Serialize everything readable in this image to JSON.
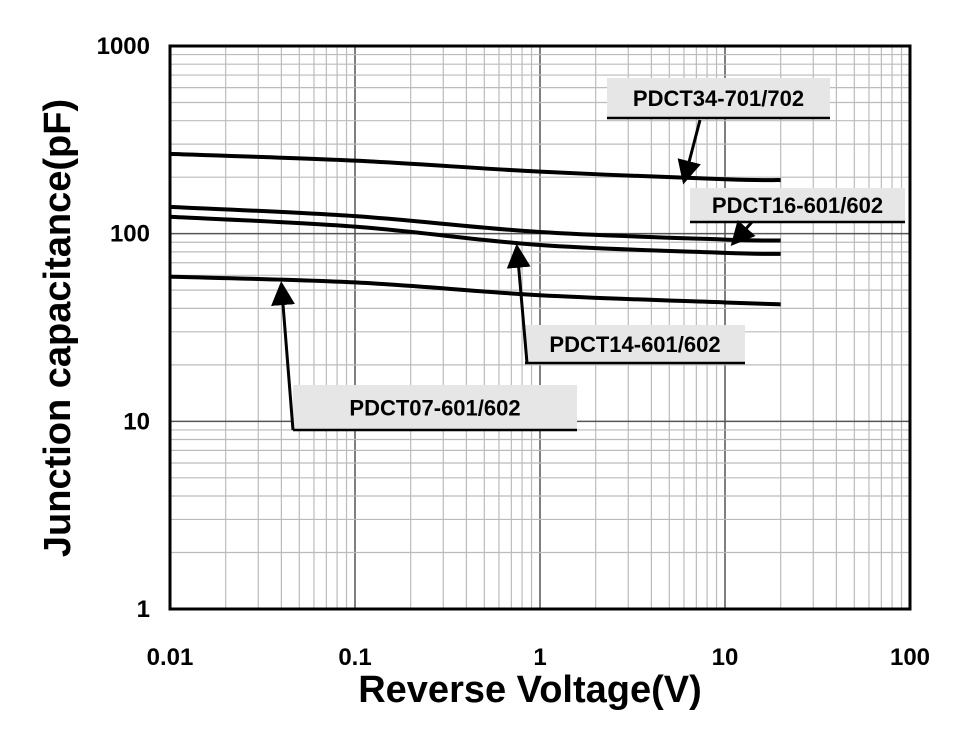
{
  "chart_data": {
    "type": "line",
    "title": "",
    "xlabel": "Reverse Voltage(V)",
    "ylabel": "Junction capacitance(pF)",
    "xscale": "log",
    "yscale": "log",
    "xlim": [
      0.01,
      100
    ],
    "ylim": [
      1,
      1000
    ],
    "grid": true,
    "x_ticks": [
      "0.01",
      "0.1",
      "1",
      "10",
      "100"
    ],
    "y_ticks": [
      "1",
      "10",
      "100",
      "1000"
    ],
    "x": [
      0.01,
      0.1,
      1,
      10,
      20
    ],
    "series": [
      {
        "name": "PDCT34-701/702",
        "values": [
          266,
          245,
          214,
          195,
          193
        ]
      },
      {
        "name": "PDCT16-601/602",
        "values": [
          139,
          124,
          102,
          93,
          92
        ]
      },
      {
        "name": "PDCT14-601/602",
        "values": [
          123,
          109,
          87,
          79,
          78
        ]
      },
      {
        "name": "PDCT07-601/602",
        "values": [
          59,
          55,
          47,
          43,
          42
        ]
      }
    ],
    "annotations": [
      {
        "text": "PDCT34-701/702",
        "series": 0,
        "arrow_to_x": 6
      },
      {
        "text": "PDCT16-601/602",
        "series": 1,
        "arrow_to_x": 11
      },
      {
        "text": "PDCT14-601/602",
        "series": 2,
        "arrow_to_x": 0.75
      },
      {
        "text": "PDCT07-601/602",
        "series": 3,
        "arrow_to_x": 0.04
      }
    ]
  }
}
